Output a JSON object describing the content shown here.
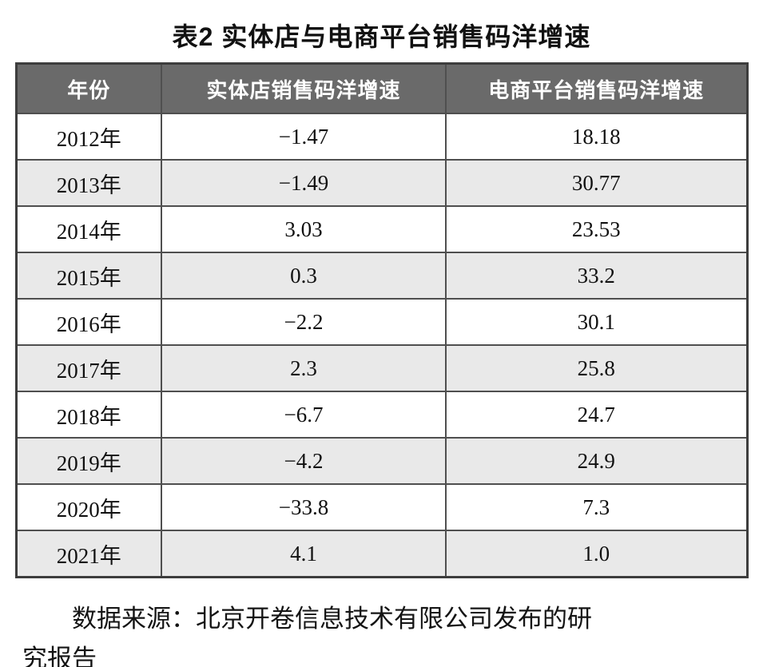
{
  "page": {
    "title": "表2 实体店与电商平台销售码洋增速"
  },
  "table": {
    "columns": [
      "年份",
      "实体店销售码洋增速",
      "电商平台销售码洋增速"
    ],
    "rows": [
      {
        "year": "2012年",
        "store_growth": "−1.47",
        "ecom_growth": "18.18"
      },
      {
        "year": "2013年",
        "store_growth": "−1.49",
        "ecom_growth": "30.77"
      },
      {
        "year": "2014年",
        "store_growth": "3.03",
        "ecom_growth": "23.53"
      },
      {
        "year": "2015年",
        "store_growth": "0.3",
        "ecom_growth": "33.2"
      },
      {
        "year": "2016年",
        "store_growth": "−2.2",
        "ecom_growth": "30.1"
      },
      {
        "year": "2017年",
        "store_growth": "2.3",
        "ecom_growth": "25.8"
      },
      {
        "year": "2018年",
        "store_growth": "−6.7",
        "ecom_growth": "24.7"
      },
      {
        "year": "2019年",
        "store_growth": "−4.2",
        "ecom_growth": "24.9"
      },
      {
        "year": "2020年",
        "store_growth": "−33.8",
        "ecom_growth": "7.3"
      },
      {
        "year": "2021年",
        "store_growth": "4.1",
        "ecom_growth": "1.0"
      }
    ]
  },
  "source_note": {
    "line1": "数据来源：北京开卷信息技术有限公司发布的研",
    "line2": "究报告"
  },
  "colors": {
    "header_bg": "#6a6a6a",
    "header_text": "#ffffff",
    "row_alt_bg": "#e9e9e9",
    "border": "#4f4f4f",
    "text": "#111111"
  }
}
